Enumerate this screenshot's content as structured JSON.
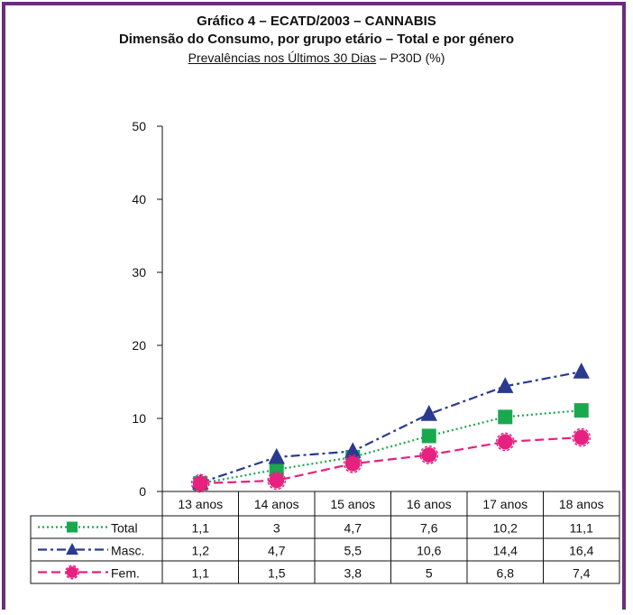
{
  "titles": {
    "line1": "Gráfico 4 – ECATD/2003 – CANNABIS",
    "line2": "Dimensão do Consumo, por grupo etário – Total e por género",
    "line3_underlined": "Prevalências nos Últimos 30 Dias",
    "line3_rest": " – P30D (%)"
  },
  "chart_data": {
    "type": "line",
    "title": "Gráfico 4 – ECATD/2003 – CANNABIS",
    "subtitle": "Dimensão do Consumo, por grupo etário – Total e por género",
    "categories": [
      "13 anos",
      "14 anos",
      "15 anos",
      "16 anos",
      "17 anos",
      "18 anos"
    ],
    "ylim": [
      0,
      50
    ],
    "yticks": [
      0,
      10,
      20,
      30,
      40,
      50
    ],
    "grid": false,
    "legend": "data-table-below",
    "series": [
      {
        "name": "Total",
        "values": [
          1.1,
          3,
          4.7,
          7.6,
          10.2,
          11.1
        ],
        "labels": [
          "1,1",
          "3",
          "4,7",
          "7,6",
          "10,2",
          "11,1"
        ],
        "color": "#1aa84f",
        "marker": "square",
        "dash": "dotted"
      },
      {
        "name": "Masc.",
        "values": [
          1.2,
          4.7,
          5.5,
          10.6,
          14.4,
          16.4
        ],
        "labels": [
          "1,2",
          "4,7",
          "5,5",
          "10,6",
          "14,4",
          "16,4"
        ],
        "color": "#2a3a8f",
        "marker": "triangle",
        "dash": "dashdot"
      },
      {
        "name": "Fem.",
        "values": [
          1.1,
          1.5,
          3.8,
          5,
          6.8,
          7.4
        ],
        "labels": [
          "1,1",
          "1,5",
          "3,8",
          "5",
          "6,8",
          "7,4"
        ],
        "color": "#e6217f",
        "marker": "circle",
        "dash": "dashed"
      }
    ]
  }
}
